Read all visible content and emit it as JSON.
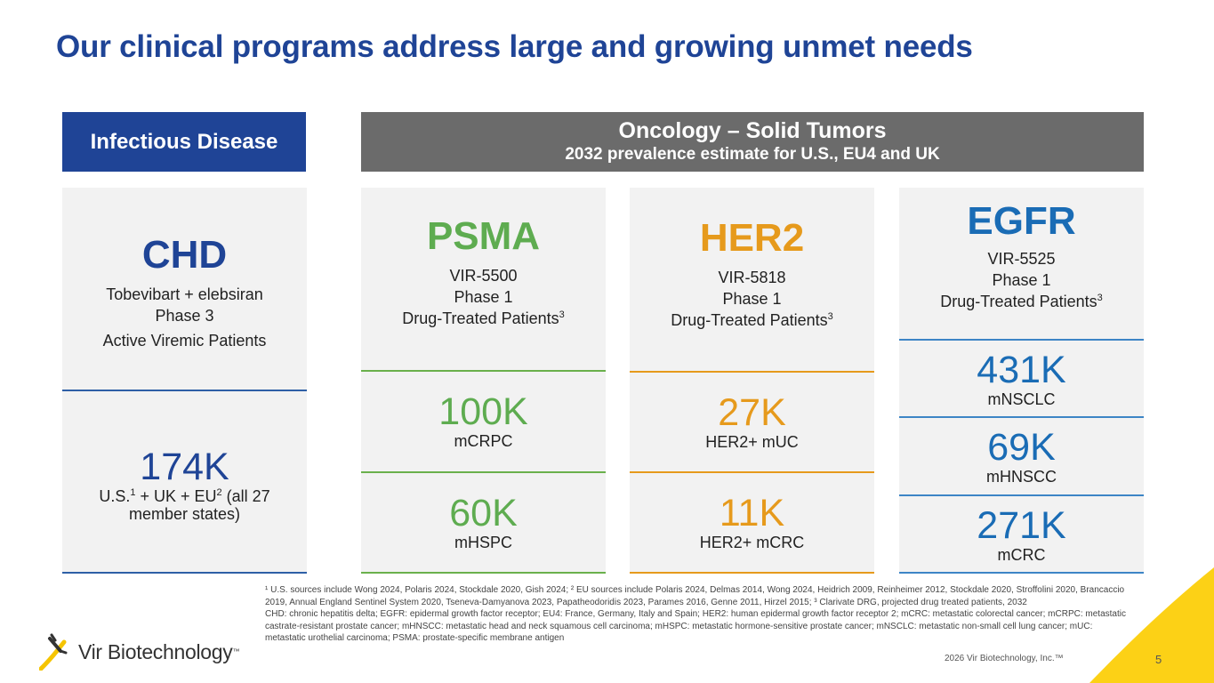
{
  "title": "Our clinical programs address large and growing unmet needs",
  "headers": {
    "infectious": "Infectious Disease",
    "oncology_line1": "Oncology – Solid Tumors",
    "oncology_line2": "2032 prevalence estimate for U.S., EU4 and UK"
  },
  "chd": {
    "name": "CHD",
    "drug": "Tobevibart + elebsiran",
    "phase": "Phase 3",
    "population": "Active Viremic Patients",
    "value": "174K",
    "region_a": "U.S.",
    "region_sup1": "1",
    "region_b": " + UK + EU",
    "region_sup2": "2",
    "region_c": " (all 27 member states)"
  },
  "psma": {
    "name": "PSMA",
    "drug": "VIR-5500",
    "phase": "Phase 1",
    "population": "Drug-Treated Patients",
    "sup": "3",
    "rows": [
      {
        "value": "100K",
        "label": "mCRPC"
      },
      {
        "value": "60K",
        "label": "mHSPC"
      }
    ]
  },
  "her2": {
    "name": "HER2",
    "drug": "VIR-5818",
    "phase": "Phase 1",
    "population": "Drug-Treated Patients",
    "sup": "3",
    "rows": [
      {
        "value": "27K",
        "label": "HER2+ mUC"
      },
      {
        "value": "11K",
        "label": "HER2+ mCRC"
      }
    ]
  },
  "egfr": {
    "name": "EGFR",
    "drug": "VIR-5525",
    "phase": "Phase 1",
    "population": "Drug-Treated Patients",
    "sup": "3",
    "rows": [
      {
        "value": "431K",
        "label": "mNSCLC"
      },
      {
        "value": "69K",
        "label": "mHNSCC"
      },
      {
        "value": "271K",
        "label": "mCRC"
      }
    ]
  },
  "footnotes": {
    "line1": "¹ U.S. sources include Wong 2024, Polaris 2024, Stockdale 2020, Gish 2024; ² EU sources include Polaris 2024, Delmas 2014, Wong 2024, Heidrich 2009, Reinheimer 2012, Stockdale 2020, Stroffolini 2020, Brancaccio 2019, Annual England Sentinel System 2020, Tseneva-Damyanova 2023, Papatheodoridis 2023, Parames 2016, Genne 2011, Hirzel 2015; ³ Clarivate DRG, projected drug treated patients, 2032",
    "line2": "CHD: chronic hepatitis delta; EGFR: epidermal growth factor receptor; EU4: France, Germany, Italy and Spain; HER2: human epidermal growth factor receptor 2; mCRC: metastatic colorectal cancer; mCRPC: metastatic castrate-resistant prostate cancer; mHNSCC: metastatic head and neck squamous cell carcinoma; mHSPC: metastatic hormone-sensitive prostate cancer; mNSCLC: metastatic non-small cell lung cancer; mUC: metastatic urothelial carcinoma; PSMA: prostate-specific membrane antigen"
  },
  "copyright": "2026 Vir Biotechnology, Inc.™",
  "page_number": "5",
  "logo": {
    "text": "Vir Biotechnology",
    "tm": "™"
  },
  "colors": {
    "navy": "#1f4496",
    "green": "#5eac50",
    "orange": "#e69a1c",
    "light_blue": "#1a6cb5",
    "gray_header": "#6b6b6b",
    "yellow": "#fcd116"
  }
}
